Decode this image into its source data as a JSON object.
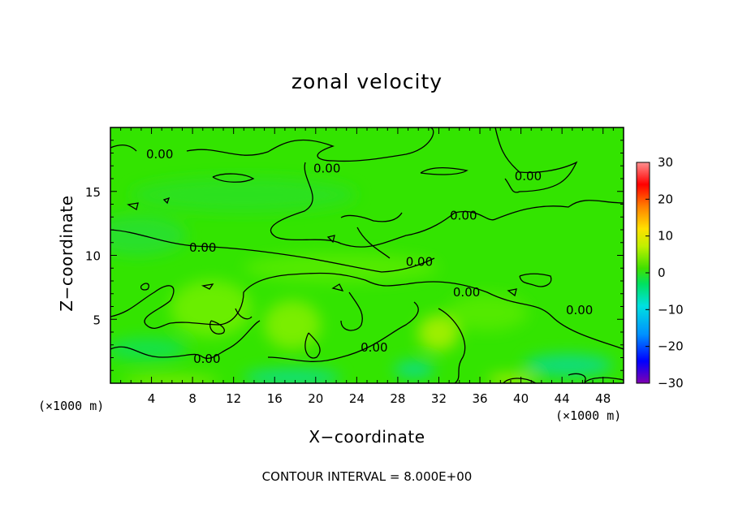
{
  "title": "zonal velocity",
  "footer": "CONTOUR INTERVAL = 8.000E+00",
  "x_unit_left": "(×1000 m)",
  "x_unit_right": "(×1000 m)",
  "colors": {
    "field_base": "#33e400",
    "field_light": "#6ef000",
    "field_warm": "#a8f000",
    "field_cool": "#00e07a",
    "field_cyan": "#00d8d0",
    "contour": "#000000"
  },
  "chart_data": {
    "type": "heatmap",
    "title": "zonal velocity",
    "xlabel": "X−coordinate",
    "ylabel": "Z−coordinate",
    "xlim": [
      0,
      50
    ],
    "ylim": [
      0,
      20
    ],
    "x_ticks": [
      4,
      8,
      12,
      16,
      20,
      24,
      28,
      32,
      36,
      40,
      44,
      48
    ],
    "y_ticks": [
      5,
      10,
      15
    ],
    "x_unit": "(×1000 m)",
    "z_unit": "(×1000 m)",
    "colorbar": {
      "range": [
        -30,
        30
      ],
      "ticks": [
        30,
        20,
        10,
        0,
        -10,
        -20,
        -30
      ],
      "tick_labels": [
        "30",
        "20",
        "10",
        "0",
        "−10",
        "−20",
        "−30"
      ],
      "colormap": [
        "#8000b0",
        "#0000ff",
        "#0090ff",
        "#00e0e0",
        "#00e060",
        "#40e000",
        "#c0f000",
        "#ffe000",
        "#ff8000",
        "#ff0000",
        "#ff9090"
      ]
    },
    "contour_interval": 8.0,
    "contour_levels": [
      0.0
    ],
    "contour_labels": [
      {
        "text": "0.00",
        "x": 4.8,
        "z": 17.9
      },
      {
        "text": "0.00",
        "x": 21.1,
        "z": 16.8
      },
      {
        "text": "0.00",
        "x": 40.7,
        "z": 16.2
      },
      {
        "text": "0.00",
        "x": 34.4,
        "z": 13.1
      },
      {
        "text": "0.00",
        "x": 9.0,
        "z": 10.6
      },
      {
        "text": "0.00",
        "x": 30.1,
        "z": 9.5
      },
      {
        "text": "0.00",
        "x": 34.7,
        "z": 7.1
      },
      {
        "text": "0.00",
        "x": 45.7,
        "z": 5.7
      },
      {
        "text": "0.00",
        "x": 25.7,
        "z": 2.8
      },
      {
        "text": "0.00",
        "x": 9.4,
        "z": 1.9
      }
    ],
    "field_range_approx": [
      -8,
      8
    ],
    "legend_position": "right",
    "grid": false
  }
}
